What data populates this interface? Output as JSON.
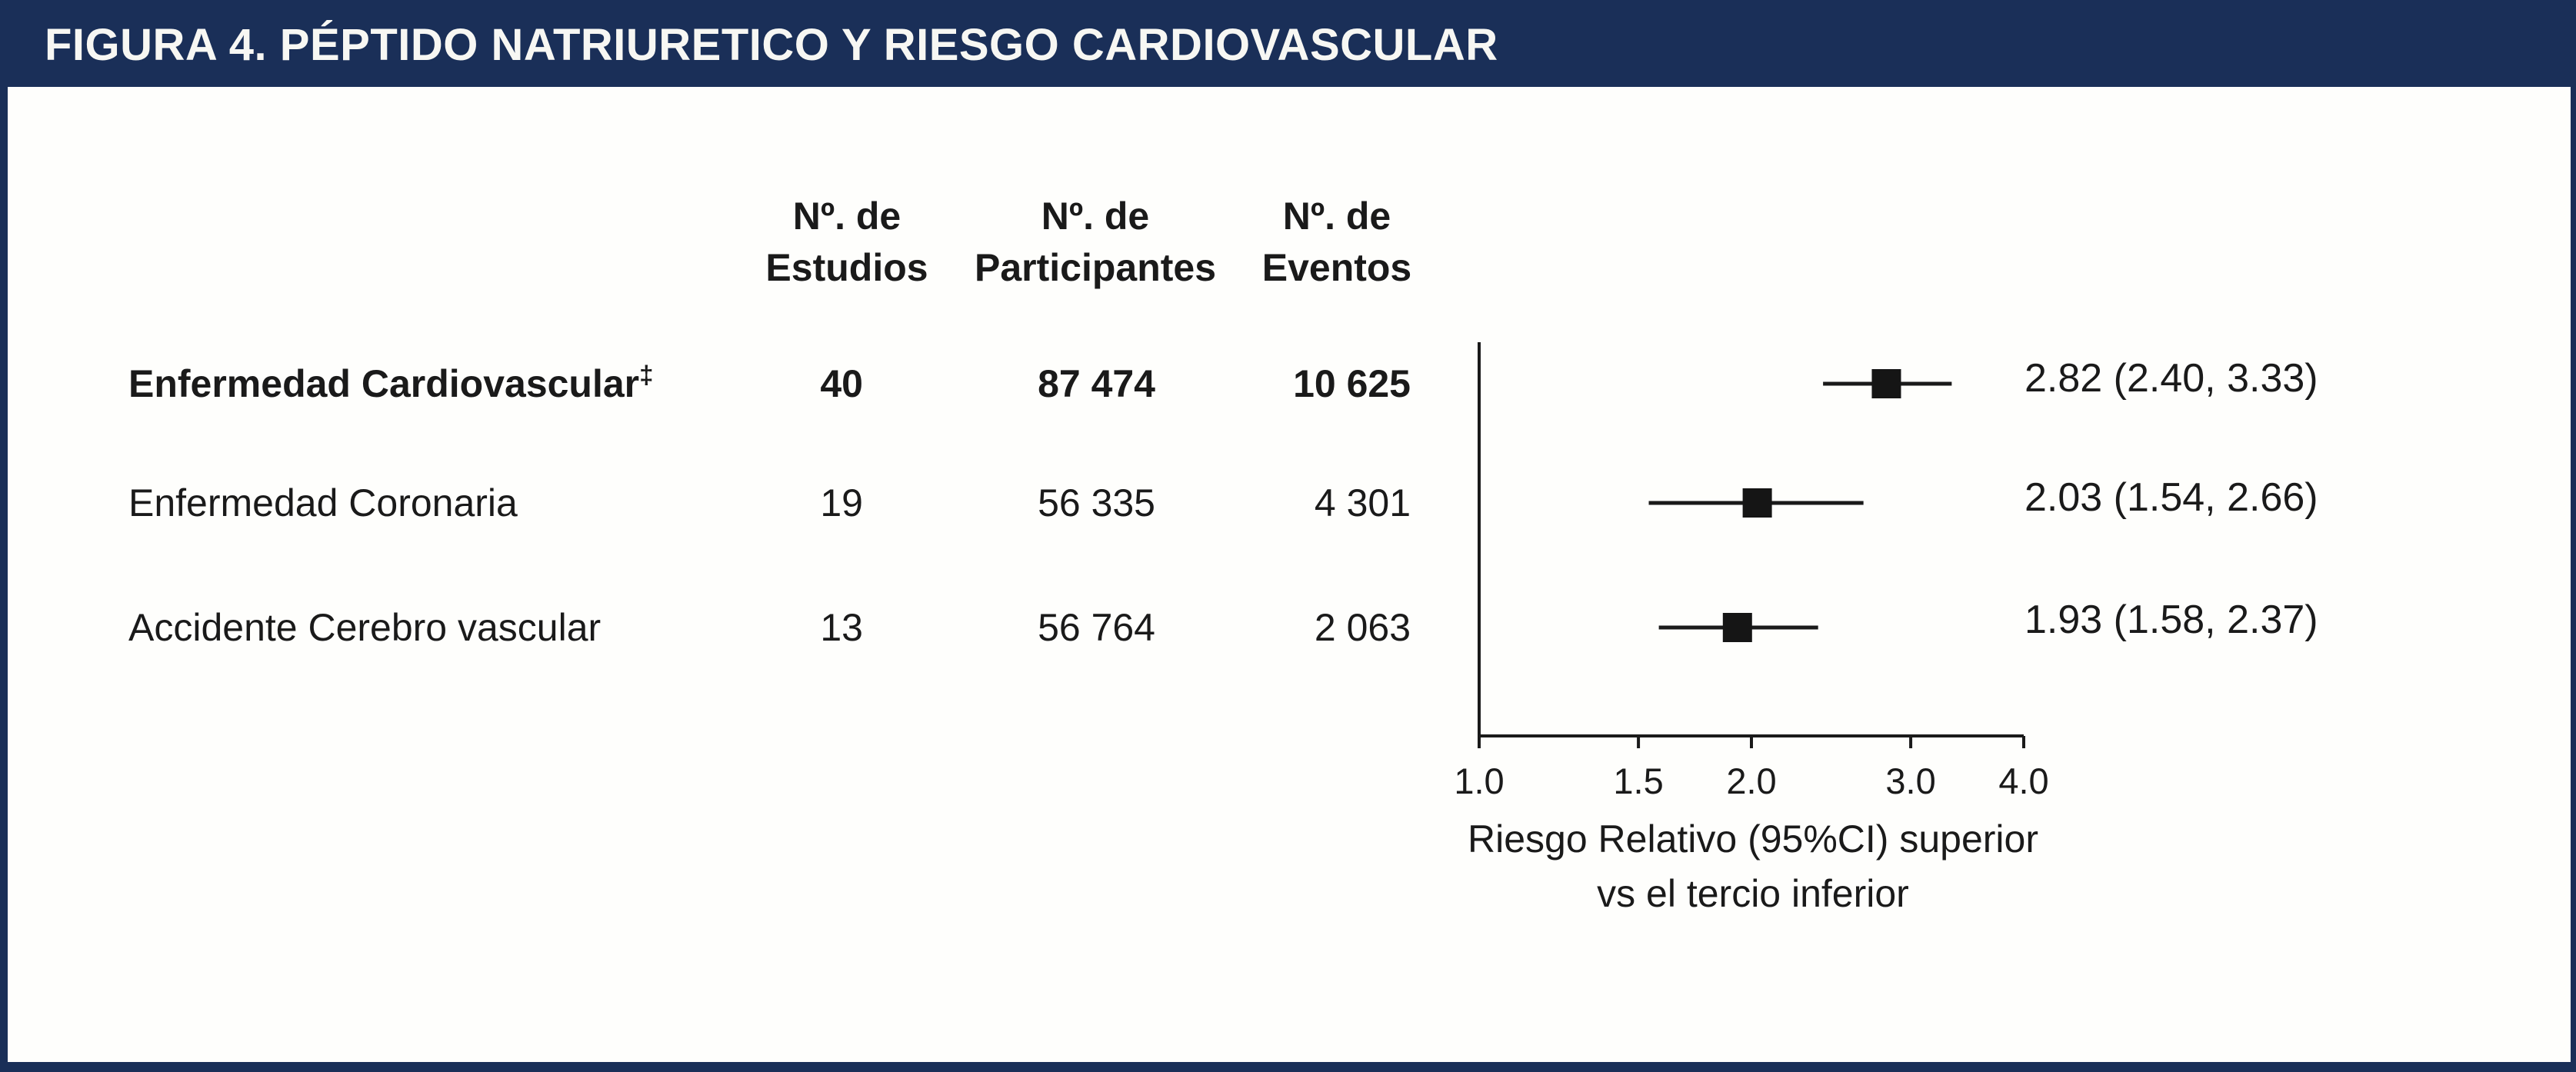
{
  "figure": {
    "title": "FIGURA 4. PÉPTIDO NATRIURETICO Y RIESGO CARDIOVASCULAR"
  },
  "table": {
    "columns": [
      {
        "line1": "Nº. de",
        "line2": "Estudios"
      },
      {
        "line1": "Nº. de",
        "line2": "Participantes"
      },
      {
        "line1": "Nº. de",
        "line2": "Eventos"
      }
    ],
    "rows": [
      {
        "label": "Enfermedad Cardiovascular",
        "marker": "‡",
        "studies": "40",
        "participants": "87 474",
        "events": "10 625",
        "rr_text": "2.82 (2.40, 3.33)"
      },
      {
        "label": "Enfermedad Coronaria",
        "marker": "",
        "studies": "19",
        "participants": "56 335",
        "events": "4 301",
        "rr_text": "2.03 (1.54, 2.66)"
      },
      {
        "label": "Accidente Cerebro vascular",
        "marker": "",
        "studies": "13",
        "participants": "56 764",
        "events": "2 063",
        "rr_text": "1.93 (1.58, 2.37)"
      }
    ]
  },
  "chart_data": {
    "type": "forest",
    "scale": "log",
    "xlim": [
      1.0,
      4.0
    ],
    "x_ticks": [
      1.0,
      1.5,
      2.0,
      3.0,
      4.0
    ],
    "x_tick_labels": [
      "1.0",
      "1.5",
      "2.0",
      "3.0",
      "4.0"
    ],
    "xlabel_line1": "Riesgo Relativo (95%CI) superior",
    "xlabel_line2": "vs el tercio inferior",
    "categories": [
      "Enfermedad Cardiovascular",
      "Enfermedad Coronaria",
      "Accidente Cerebro vascular"
    ],
    "series": [
      {
        "name": "Enfermedad Cardiovascular",
        "estimate": 2.82,
        "ci_low": 2.4,
        "ci_high": 3.33,
        "n_studies": 40,
        "n_participants": 87474,
        "n_events": 10625
      },
      {
        "name": "Enfermedad Coronaria",
        "estimate": 2.03,
        "ci_low": 1.54,
        "ci_high": 2.66,
        "n_studies": 19,
        "n_participants": 56335,
        "n_events": 4301
      },
      {
        "name": "Accidente Cerebro vascular",
        "estimate": 1.93,
        "ci_low": 1.58,
        "ci_high": 2.37,
        "n_studies": 13,
        "n_participants": 56764,
        "n_events": 2063
      }
    ],
    "marker_shape": "filled-square",
    "grid": false,
    "legend": false
  },
  "colors": {
    "header_bg": "#1a2f58",
    "title_text": "#f7f7f3",
    "body_text": "#1a1a1a",
    "axis": "#1a1a1a",
    "marker": "#151515"
  }
}
